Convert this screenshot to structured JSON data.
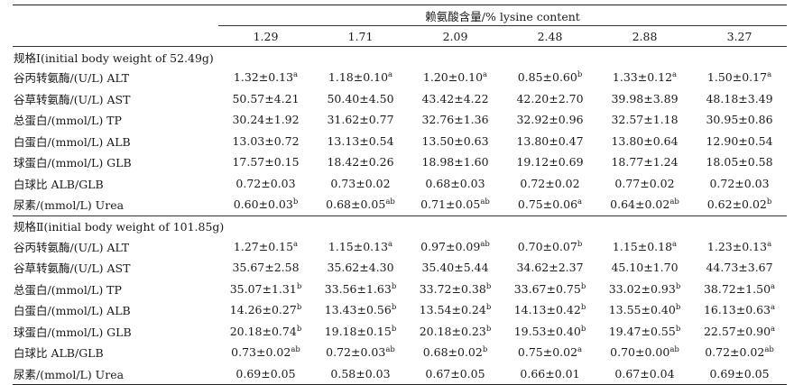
{
  "table": {
    "span_header": "赖氨酸含量/% lysine content",
    "levels": [
      "1.29",
      "1.71",
      "2.09",
      "2.48",
      "2.88",
      "3.27"
    ],
    "groups": [
      {
        "title": "规格Ⅰ(initial body weight of 52.49g)",
        "rows": [
          {
            "label": "谷丙转氨酶/(U/L) ALT",
            "cells": [
              {
                "v": "1.32±0.13",
                "s": "a"
              },
              {
                "v": "1.18±0.10",
                "s": "a"
              },
              {
                "v": "1.20±0.10",
                "s": "a"
              },
              {
                "v": "0.85±0.60",
                "s": "b"
              },
              {
                "v": "1.33±0.12",
                "s": "a"
              },
              {
                "v": "1.50±0.17",
                "s": "a"
              }
            ]
          },
          {
            "label": "谷草转氨酶/(U/L) AST",
            "cells": [
              {
                "v": "50.57±4.21",
                "s": ""
              },
              {
                "v": "50.40±4.50",
                "s": ""
              },
              {
                "v": "43.42±4.22",
                "s": ""
              },
              {
                "v": "42.20±2.70",
                "s": ""
              },
              {
                "v": "39.98±3.89",
                "s": ""
              },
              {
                "v": "48.18±3.49",
                "s": ""
              }
            ]
          },
          {
            "label": "总蛋白/(mmol/L) TP",
            "cells": [
              {
                "v": "30.24±1.92",
                "s": ""
              },
              {
                "v": "31.62±0.77",
                "s": ""
              },
              {
                "v": "32.76±1.36",
                "s": ""
              },
              {
                "v": "32.92±0.96",
                "s": ""
              },
              {
                "v": "32.57±1.18",
                "s": ""
              },
              {
                "v": "30.95±0.86",
                "s": ""
              }
            ]
          },
          {
            "label": "白蛋白/(mmol/L) ALB",
            "cells": [
              {
                "v": "13.03±0.72",
                "s": ""
              },
              {
                "v": "13.13±0.54",
                "s": ""
              },
              {
                "v": "13.50±0.63",
                "s": ""
              },
              {
                "v": "13.80±0.47",
                "s": ""
              },
              {
                "v": "13.80±0.64",
                "s": ""
              },
              {
                "v": "12.90±0.54",
                "s": ""
              }
            ]
          },
          {
            "label": "球蛋白/(mmol/L) GLB",
            "cells": [
              {
                "v": "17.57±0.15",
                "s": ""
              },
              {
                "v": "18.42±0.26",
                "s": ""
              },
              {
                "v": "18.98±1.60",
                "s": ""
              },
              {
                "v": "19.12±0.69",
                "s": ""
              },
              {
                "v": "18.77±1.24",
                "s": ""
              },
              {
                "v": "18.05±0.58",
                "s": ""
              }
            ]
          },
          {
            "label": "白球比 ALB/GLB",
            "cells": [
              {
                "v": "0.72±0.03",
                "s": ""
              },
              {
                "v": "0.73±0.02",
                "s": ""
              },
              {
                "v": "0.68±0.03",
                "s": ""
              },
              {
                "v": "0.72±0.02",
                "s": ""
              },
              {
                "v": "0.77±0.02",
                "s": ""
              },
              {
                "v": "0.72±0.03",
                "s": ""
              }
            ]
          },
          {
            "label": "尿素/(mmol/L) Urea",
            "cells": [
              {
                "v": "0.60±0.03",
                "s": "b"
              },
              {
                "v": "0.68±0.05",
                "s": "ab"
              },
              {
                "v": "0.71±0.05",
                "s": "ab"
              },
              {
                "v": "0.75±0.06",
                "s": "a"
              },
              {
                "v": "0.64±0.02",
                "s": "ab"
              },
              {
                "v": "0.62±0.02",
                "s": "b"
              }
            ]
          }
        ]
      },
      {
        "title": "规格Ⅱ(initial body weight of 101.85g)",
        "rows": [
          {
            "label": "谷丙转氨酶/(U/L) ALT",
            "cells": [
              {
                "v": "1.27±0.15",
                "s": "a"
              },
              {
                "v": "1.15±0.13",
                "s": "a"
              },
              {
                "v": "0.97±0.09",
                "s": "ab"
              },
              {
                "v": "0.70±0.07",
                "s": "b"
              },
              {
                "v": "1.15±0.18",
                "s": "a"
              },
              {
                "v": "1.23±0.13",
                "s": "a"
              }
            ]
          },
          {
            "label": "谷草转氨酶/(U/L) AST",
            "cells": [
              {
                "v": "35.67±2.58",
                "s": ""
              },
              {
                "v": "35.62±4.30",
                "s": ""
              },
              {
                "v": "35.40±5.44",
                "s": ""
              },
              {
                "v": "34.62±2.37",
                "s": ""
              },
              {
                "v": "45.10±1.70",
                "s": ""
              },
              {
                "v": "44.73±3.67",
                "s": ""
              }
            ]
          },
          {
            "label": "总蛋白/(mmol/L) TP",
            "cells": [
              {
                "v": "35.07±1.31",
                "s": "b"
              },
              {
                "v": "33.56±1.63",
                "s": "b"
              },
              {
                "v": "33.72±0.38",
                "s": "b"
              },
              {
                "v": "33.67±0.75",
                "s": "b"
              },
              {
                "v": "33.02±0.93",
                "s": "b"
              },
              {
                "v": "38.72±1.50",
                "s": "a"
              }
            ]
          },
          {
            "label": "白蛋白/(mmol/L) ALB",
            "cells": [
              {
                "v": "14.26±0.27",
                "s": "b"
              },
              {
                "v": "13.43±0.56",
                "s": "b"
              },
              {
                "v": "13.54±0.24",
                "s": "b"
              },
              {
                "v": "14.13±0.42",
                "s": "b"
              },
              {
                "v": "13.55±0.40",
                "s": "b"
              },
              {
                "v": "16.13±0.63",
                "s": "a"
              }
            ]
          },
          {
            "label": "球蛋白/(mmol/L) GLB",
            "cells": [
              {
                "v": "20.18±0.74",
                "s": "b"
              },
              {
                "v": "19.18±0.15",
                "s": "b"
              },
              {
                "v": "20.18±0.23",
                "s": "b"
              },
              {
                "v": "19.53±0.40",
                "s": "b"
              },
              {
                "v": "19.47±0.55",
                "s": "b"
              },
              {
                "v": "22.57±0.90",
                "s": "a"
              }
            ]
          },
          {
            "label": "白球比 ALB/GLB",
            "cells": [
              {
                "v": "0.73±0.02",
                "s": "ab"
              },
              {
                "v": "0.72±0.03",
                "s": "ab"
              },
              {
                "v": "0.68±0.02",
                "s": "b"
              },
              {
                "v": "0.75±0.02",
                "s": "a"
              },
              {
                "v": "0.70±0.00",
                "s": "ab"
              },
              {
                "v": "0.72±0.02",
                "s": "ab"
              }
            ]
          },
          {
            "label": "尿素/(mmol/L) Urea",
            "cells": [
              {
                "v": "0.69±0.05",
                "s": ""
              },
              {
                "v": "0.58±0.03",
                "s": ""
              },
              {
                "v": "0.67±0.05",
                "s": ""
              },
              {
                "v": "0.66±0.01",
                "s": ""
              },
              {
                "v": "0.67±0.04",
                "s": ""
              },
              {
                "v": "0.69±0.05",
                "s": ""
              }
            ]
          }
        ]
      }
    ]
  }
}
